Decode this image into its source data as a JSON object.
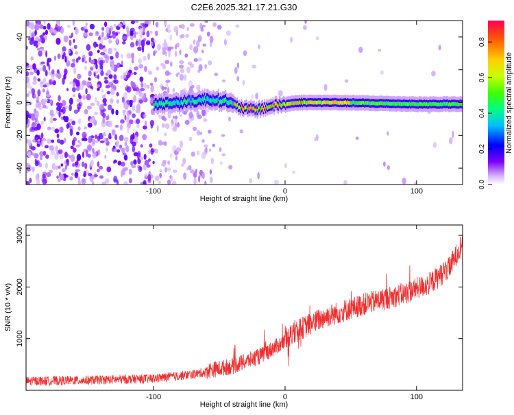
{
  "title": "C2E6.2025.321.17.21.G30",
  "chart_data": [
    {
      "type": "heatmap",
      "xlabel": "Height of straight line (km)",
      "ylabel": "Frequency (Hz)",
      "xlim": [
        -197,
        135
      ],
      "ylim": [
        -50,
        50
      ],
      "xticks": [
        -100,
        0,
        100
      ],
      "yticks": [
        -40,
        -20,
        0,
        20,
        40
      ],
      "colorbar": {
        "label": "Normalized spectral amplitude",
        "range": [
          0,
          0.92
        ],
        "ticks": [
          0.0,
          0.2,
          0.4,
          0.6,
          0.8
        ]
      },
      "ridge": {
        "description_points": [
          {
            "x": -100,
            "y": -1
          },
          {
            "x": -80,
            "y": 0
          },
          {
            "x": -60,
            "y": 2
          },
          {
            "x": -45,
            "y": 1
          },
          {
            "x": -38,
            "y": -2
          },
          {
            "x": -30,
            "y": -4
          },
          {
            "x": -20,
            "y": -4
          },
          {
            "x": -10,
            "y": -2
          },
          {
            "x": 0,
            "y": -1
          },
          {
            "x": 10,
            "y": 0
          },
          {
            "x": 40,
            "y": 0
          },
          {
            "x": 100,
            "y": -1
          },
          {
            "x": 135,
            "y": -1
          }
        ]
      }
    },
    {
      "type": "line",
      "xlabel": "Height of straight line (km)",
      "ylabel": "SNR (10 * v/v)",
      "xlim": [
        -197,
        135
      ],
      "ylim": [
        0,
        3200
      ],
      "xticks": [
        -100,
        0,
        100
      ],
      "yticks": [
        1000,
        2000,
        3000
      ],
      "color": "#f03030",
      "trend_points": [
        {
          "x": -197,
          "y": 150
        },
        {
          "x": -150,
          "y": 170
        },
        {
          "x": -100,
          "y": 200
        },
        {
          "x": -70,
          "y": 280
        },
        {
          "x": -40,
          "y": 420
        },
        {
          "x": -20,
          "y": 600
        },
        {
          "x": 0,
          "y": 900
        },
        {
          "x": 10,
          "y": 1100
        },
        {
          "x": 30,
          "y": 1350
        },
        {
          "x": 60,
          "y": 1600
        },
        {
          "x": 90,
          "y": 1800
        },
        {
          "x": 110,
          "y": 2000
        },
        {
          "x": 125,
          "y": 2300
        },
        {
          "x": 135,
          "y": 2800
        }
      ]
    }
  ]
}
